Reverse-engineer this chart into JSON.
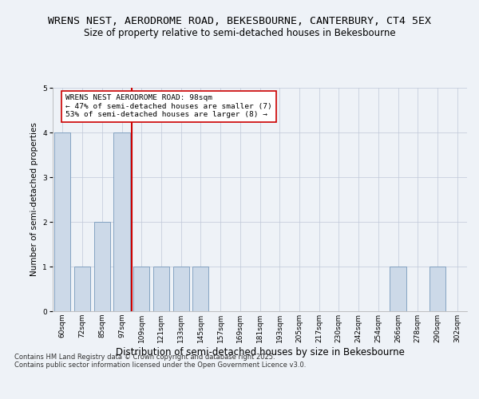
{
  "title": "WRENS NEST, AERODROME ROAD, BEKESBOURNE, CANTERBURY, CT4 5EX",
  "subtitle": "Size of property relative to semi-detached houses in Bekesbourne",
  "xlabel": "Distribution of semi-detached houses by size in Bekesbourne",
  "ylabel": "Number of semi-detached properties",
  "categories": [
    "60sqm",
    "72sqm",
    "85sqm",
    "97sqm",
    "109sqm",
    "121sqm",
    "133sqm",
    "145sqm",
    "157sqm",
    "169sqm",
    "181sqm",
    "193sqm",
    "205sqm",
    "217sqm",
    "230sqm",
    "242sqm",
    "254sqm",
    "266sqm",
    "278sqm",
    "290sqm",
    "302sqm"
  ],
  "values": [
    4,
    1,
    2,
    4,
    1,
    1,
    1,
    1,
    0,
    0,
    0,
    0,
    0,
    0,
    0,
    0,
    0,
    1,
    0,
    1,
    0
  ],
  "bar_color": "#ccd9e8",
  "bar_edge_color": "#7799bb",
  "highlight_index": 3,
  "highlight_color": "#cc0000",
  "annotation_text": "WRENS NEST AERODROME ROAD: 98sqm\n← 47% of semi-detached houses are smaller (7)\n53% of semi-detached houses are larger (8) →",
  "annotation_box_color": "#ffffff",
  "annotation_box_edge": "#cc0000",
  "ylim": [
    0,
    5
  ],
  "yticks": [
    0,
    1,
    2,
    3,
    4,
    5
  ],
  "footnote": "Contains HM Land Registry data © Crown copyright and database right 2025.\nContains public sector information licensed under the Open Government Licence v3.0.",
  "title_fontsize": 9.5,
  "subtitle_fontsize": 8.5,
  "xlabel_fontsize": 8.5,
  "ylabel_fontsize": 7.5,
  "tick_fontsize": 6.5,
  "annotation_fontsize": 6.8,
  "footnote_fontsize": 6,
  "background_color": "#eef2f7"
}
